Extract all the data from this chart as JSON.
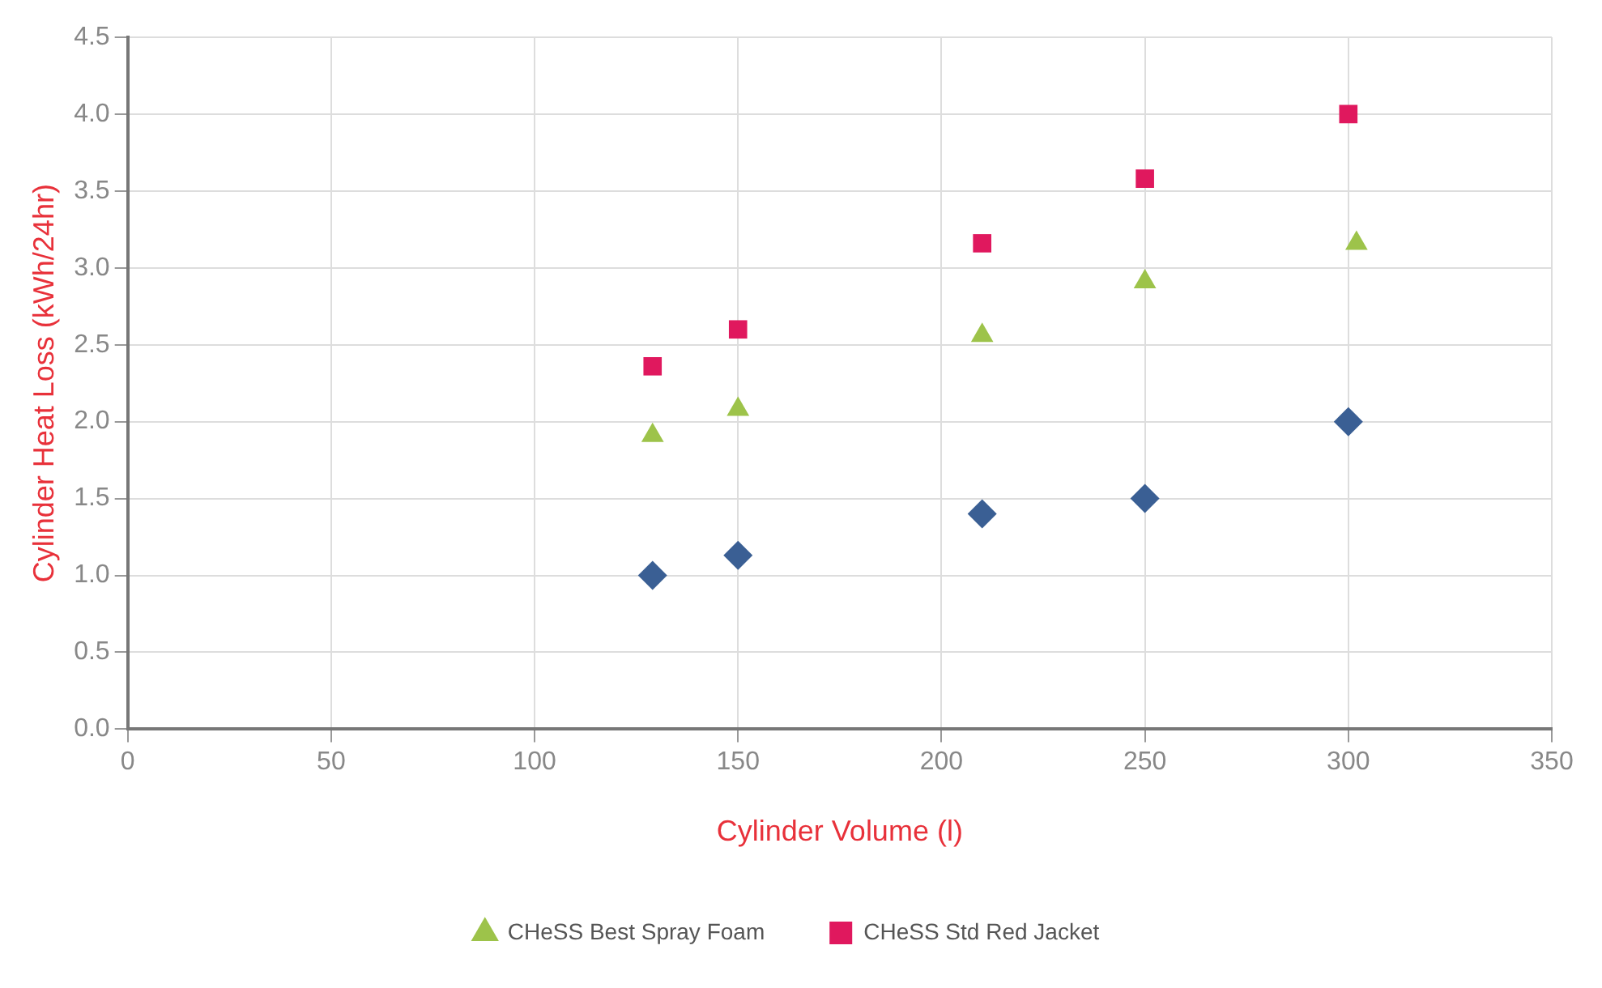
{
  "chart_data": {
    "type": "scatter",
    "xlabel": "Cylinder Volume (l)",
    "ylabel": "Cylinder Heat Loss (kWh/24hr)",
    "xlim": [
      0,
      350
    ],
    "xticks": [
      0,
      50,
      100,
      150,
      200,
      250,
      300,
      350
    ],
    "ylim": [
      0,
      4.5
    ],
    "yticks": [
      {
        "value": 0,
        "label": "0.0"
      },
      {
        "value": 0.5,
        "label": "0.5"
      },
      {
        "value": 1,
        "label": "1.0"
      },
      {
        "value": 1.5,
        "label": "1.5"
      },
      {
        "value": 2,
        "label": "2.0"
      },
      {
        "value": 2.5,
        "label": "2.5"
      },
      {
        "value": 3,
        "label": "3.0"
      },
      {
        "value": 3.5,
        "label": "3.5"
      },
      {
        "value": 4,
        "label": "4.0"
      },
      {
        "value": 4.5,
        "label": "4.5"
      }
    ],
    "grid": true,
    "legend": "bottom",
    "series": [
      {
        "color": "#3a5f94",
        "marker": "diamond",
        "x": [
          129,
          150,
          210,
          250,
          300
        ],
        "values": [
          1.0,
          1.13,
          1.4,
          1.5,
          2.0
        ]
      },
      {
        "name": "CHeSS Best Spray Foam",
        "color": "#9dc34a",
        "marker": "triangle",
        "x": [
          129,
          150,
          210,
          250,
          302
        ],
        "values": [
          1.91,
          2.08,
          2.56,
          2.91,
          3.16
        ]
      },
      {
        "name": "CHeSS Std Red Jacket",
        "color": "#e0185e",
        "marker": "square",
        "x": [
          129,
          150,
          210,
          250,
          300
        ],
        "values": [
          2.36,
          2.6,
          3.16,
          3.58,
          4.0
        ]
      }
    ]
  }
}
